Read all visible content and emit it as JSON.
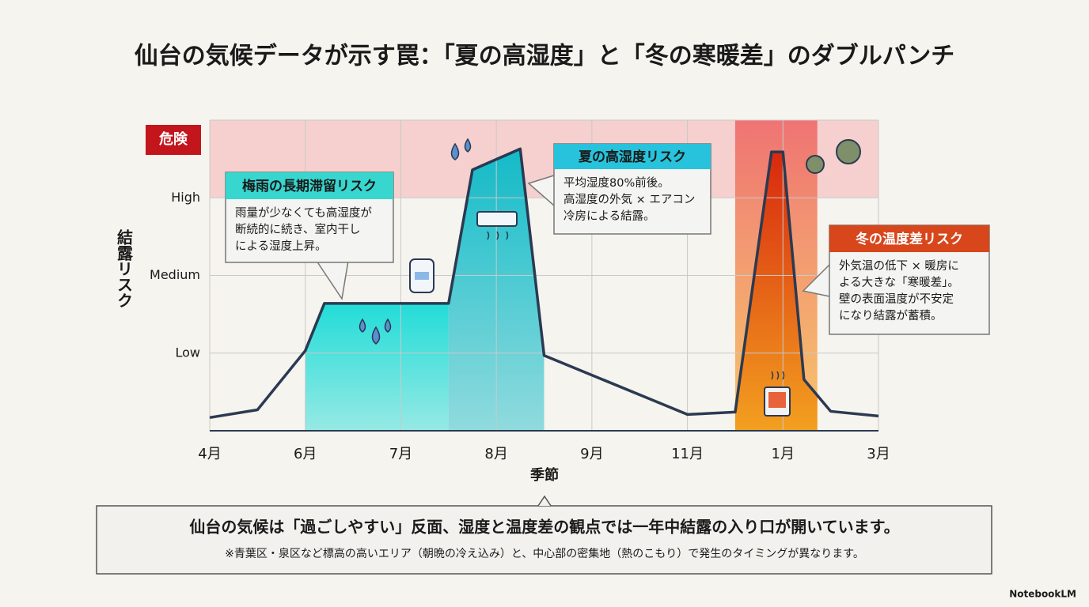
{
  "chart_data": {
    "type": "line",
    "title": "仙台の気候データが示す罠：「夏の高湿度」と「冬の寒暖差」のダブルパンチ",
    "x_label": "季節",
    "y_label": "結露リスク",
    "xlim": [
      0,
      7
    ],
    "xticks": [
      {
        "value": 0,
        "label": "4月"
      },
      {
        "value": 1,
        "label": "6月"
      },
      {
        "value": 2,
        "label": "7月"
      },
      {
        "value": 3,
        "label": "8月"
      },
      {
        "value": 4,
        "label": "9月"
      },
      {
        "value": 5,
        "label": "11月"
      },
      {
        "value": 6,
        "label": "1月"
      },
      {
        "value": 7,
        "label": "3月"
      }
    ],
    "ylim": [
      0,
      4
    ],
    "yticks": [
      {
        "value": 1,
        "label": "Low"
      },
      {
        "value": 2,
        "label": "Medium"
      },
      {
        "value": 3,
        "label": "High"
      }
    ],
    "grid": true,
    "danger_zone": {
      "label": "危険",
      "from": 3,
      "to": 4,
      "color": "#f4c4c4"
    },
    "series": [
      {
        "color": "#2b3a52",
        "x": [
          0,
          0.5,
          1,
          1.2,
          2.5,
          2.75,
          3.25,
          3.5,
          5,
          5.5,
          5.88,
          6,
          6.22,
          6.5,
          7
        ],
        "values": [
          0.17,
          0.27,
          1.03,
          1.64,
          1.64,
          3.36,
          3.63,
          0.97,
          0.21,
          0.24,
          3.59,
          3.59,
          0.66,
          0.25,
          0.19
        ]
      }
    ],
    "regions": [
      {
        "from": 1,
        "to": 2.5,
        "color": "#22dcd8"
      },
      {
        "from": 2.5,
        "to": 3.5,
        "color": "#13bcc9"
      },
      {
        "from": 5.5,
        "to": 6.36,
        "color": "#d8280f"
      }
    ],
    "annotations": [
      {
        "title": "梅雨の長期滞留リスク",
        "body": [
          "雨量が少なくても高湿度が",
          "断続的に続き、室内干し",
          "による湿度上昇。"
        ],
        "color": "#37d6cf"
      },
      {
        "title": "夏の高湿度リスク",
        "body": [
          "平均湿度80%前後。",
          "高湿度の外気 × エアコン",
          "冷房による結露。"
        ],
        "color": "#27c3dc"
      },
      {
        "title": "冬の温度差リスク",
        "body": [
          "外気温の低下 × 暖房に",
          "よる大きな「寒暖差」。",
          "壁の表面温度が不安定",
          "になり結露が蓄積。"
        ],
        "color": "#d8461c"
      }
    ],
    "summary": "仙台の気候は「過ごしやすい」反面、湿度と温度差の観点では一年中結露の入り口が開いています。",
    "note": "※青葉区・泉区など標高の高いエリア（朝晩の冷え込み）と、中心部の密集地（熱のこもり）で発生のタイミングが異なります。",
    "brand": "NotebookLM"
  }
}
